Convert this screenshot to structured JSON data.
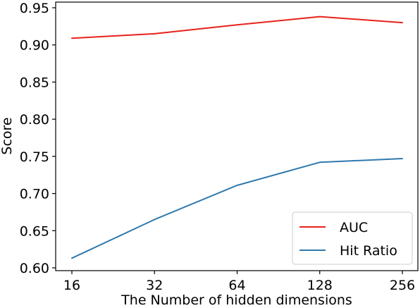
{
  "chart_data": {
    "type": "line",
    "xlabel": "The Number of hidden dimensions",
    "ylabel": "Score",
    "categories": [
      "16",
      "32",
      "64",
      "128",
      "256"
    ],
    "ylim": [
      0.6,
      0.95
    ],
    "yticks": [
      "0.60",
      "0.65",
      "0.70",
      "0.75",
      "0.80",
      "0.85",
      "0.90",
      "0.95"
    ],
    "grid": false,
    "legend_position": "lower-right",
    "series": [
      {
        "name": "AUC",
        "color": "#e8211c",
        "values": [
          0.909,
          0.915,
          0.927,
          0.938,
          0.93
        ]
      },
      {
        "name": "Hit Ratio",
        "color": "#2f79ad",
        "values": [
          0.613,
          0.665,
          0.711,
          0.742,
          0.747
        ]
      }
    ]
  }
}
